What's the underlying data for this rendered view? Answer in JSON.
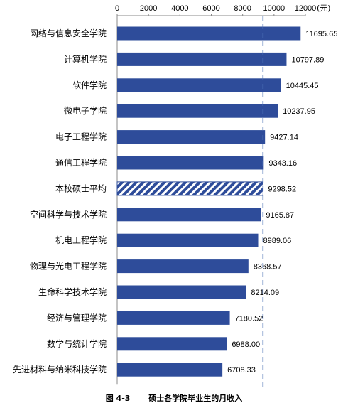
{
  "chart_data": {
    "type": "bar",
    "orientation": "horizontal",
    "categories": [
      "网络与信息安全学院",
      "计算机学院",
      "软件学院",
      "微电子学院",
      "电子工程学院",
      "通信工程学院",
      "本校硕士平均",
      "空间科学与技术学院",
      "机电工程学院",
      "物理与光电工程学院",
      "生命科学技术学院",
      "经济与管理学院",
      "数学与统计学院",
      "先进材料与纳米科技学院"
    ],
    "values": [
      11695.65,
      10797.89,
      10445.45,
      10237.95,
      9427.14,
      9343.16,
      9298.52,
      9165.87,
      8989.06,
      8368.57,
      8214.09,
      7180.52,
      6988.0,
      6708.33
    ],
    "value_labels": [
      "11695.65",
      "10797.89",
      "10445.45",
      "10237.95",
      "9427.14",
      "9343.16",
      "9298.52",
      "9165.87",
      "8989.06",
      "8368.57",
      "8214.09",
      "7180.52",
      "6988.00",
      "6708.33"
    ],
    "highlight_category": "本校硕士平均",
    "reference_line_value": 9298.52,
    "x_ticks": [
      0,
      2000,
      4000,
      6000,
      8000,
      10000,
      12000
    ],
    "x_unit": "(元)",
    "xlim": [
      0,
      12000
    ],
    "axis_position": "top",
    "bar_color": "#2E4C9A",
    "grid": false
  },
  "caption": {
    "figure_number": "图 4-3",
    "title": "硕士各学院毕业生的月收入"
  }
}
